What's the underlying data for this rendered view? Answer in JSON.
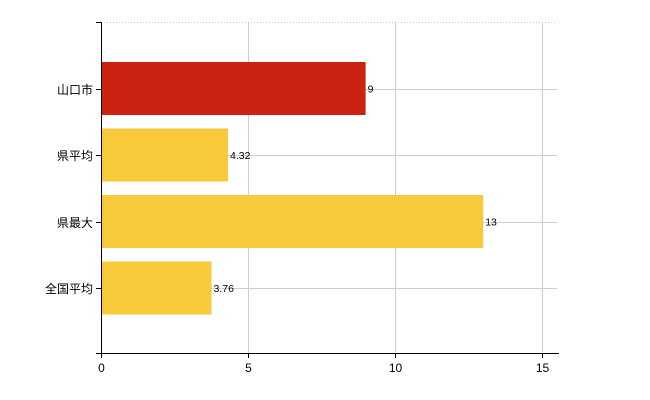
{
  "chart_data": {
    "type": "bar",
    "orientation": "horizontal",
    "categories": [
      "山口市",
      "県平均",
      "県最大",
      "全国平均"
    ],
    "values": [
      9,
      4.32,
      13,
      3.76
    ],
    "data_labels": [
      "9",
      "4.32",
      "13",
      "3.76"
    ],
    "colors": [
      "#cc2211",
      "#f8c93a",
      "#f8c93a",
      "#f8c93a"
    ],
    "xlim": [
      0,
      15
    ],
    "xticks": [
      0,
      5,
      10,
      15
    ],
    "xtick_labels": [
      "0",
      "5",
      "10",
      "15"
    ],
    "grid": true,
    "legend": "none"
  }
}
